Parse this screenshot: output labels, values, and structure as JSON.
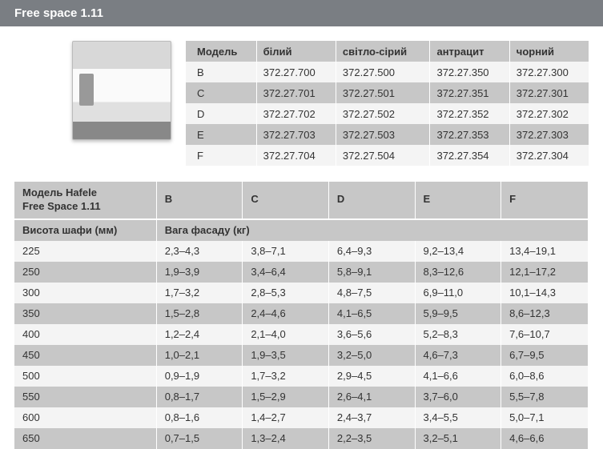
{
  "title": "Free space 1.11",
  "topTable": {
    "headers": [
      "Модель",
      "білий",
      "світло-сірий",
      "антрацит",
      "чорний"
    ],
    "rows": [
      [
        "B",
        "372.27.700",
        "372.27.500",
        "372.27.350",
        "372.27.300"
      ],
      [
        "C",
        "372.27.701",
        "372.27.501",
        "372.27.351",
        "372.27.301"
      ],
      [
        "D",
        "372.27.702",
        "372.27.502",
        "372.27.352",
        "372.27.302"
      ],
      [
        "E",
        "372.27.703",
        "372.27.503",
        "372.27.353",
        "372.27.303"
      ],
      [
        "F",
        "372.27.704",
        "372.27.504",
        "372.27.354",
        "372.27.304"
      ]
    ]
  },
  "bottomTable": {
    "mainHeaderLeft1": "Модель Hafele",
    "mainHeaderLeft2": "Free Space 1.11",
    "modelCols": [
      "B",
      "C",
      "D",
      "E",
      "F"
    ],
    "subHeaderLeft": "Висота шафи (мм)",
    "subHeaderRight": "Вага фасаду (кг)",
    "rows": [
      [
        "225",
        "2,3–4,3",
        "3,8–7,1",
        "6,4–9,3",
        "9,2–13,4",
        "13,4–19,1"
      ],
      [
        "250",
        "1,9–3,9",
        "3,4–6,4",
        "5,8–9,1",
        "8,3–12,6",
        "12,1–17,2"
      ],
      [
        "300",
        "1,7–3,2",
        "2,8–5,3",
        "4,8–7,5",
        "6,9–11,0",
        "10,1–14,3"
      ],
      [
        "350",
        "1,5–2,8",
        "2,4–4,6",
        "4,1–6,5",
        "5,9–9,5",
        "8,6–12,3"
      ],
      [
        "400",
        "1,2–2,4",
        "2,1–4,0",
        "3,6–5,6",
        "5,2–8,3",
        "7,6–10,7"
      ],
      [
        "450",
        "1,0–2,1",
        "1,9–3,5",
        "3,2–5,0",
        "4,6–7,3",
        "6,7–9,5"
      ],
      [
        "500",
        "0,9–1,9",
        "1,7–3,2",
        "2,9–4,5",
        "4,1–6,6",
        "6,0–8,6"
      ],
      [
        "550",
        "0,8–1,7",
        "1,5–2,9",
        "2,6–4,1",
        "3,7–6,0",
        "5,5–7,8"
      ],
      [
        "600",
        "0,8–1,6",
        "1,4–2,7",
        "2,4–3,7",
        "3,4–5,5",
        "5,0–7,1"
      ],
      [
        "650",
        "0,7–1,5",
        "1,3–2,4",
        "2,2–3,5",
        "3,2–5,1",
        "4,6–6,6"
      ]
    ]
  }
}
